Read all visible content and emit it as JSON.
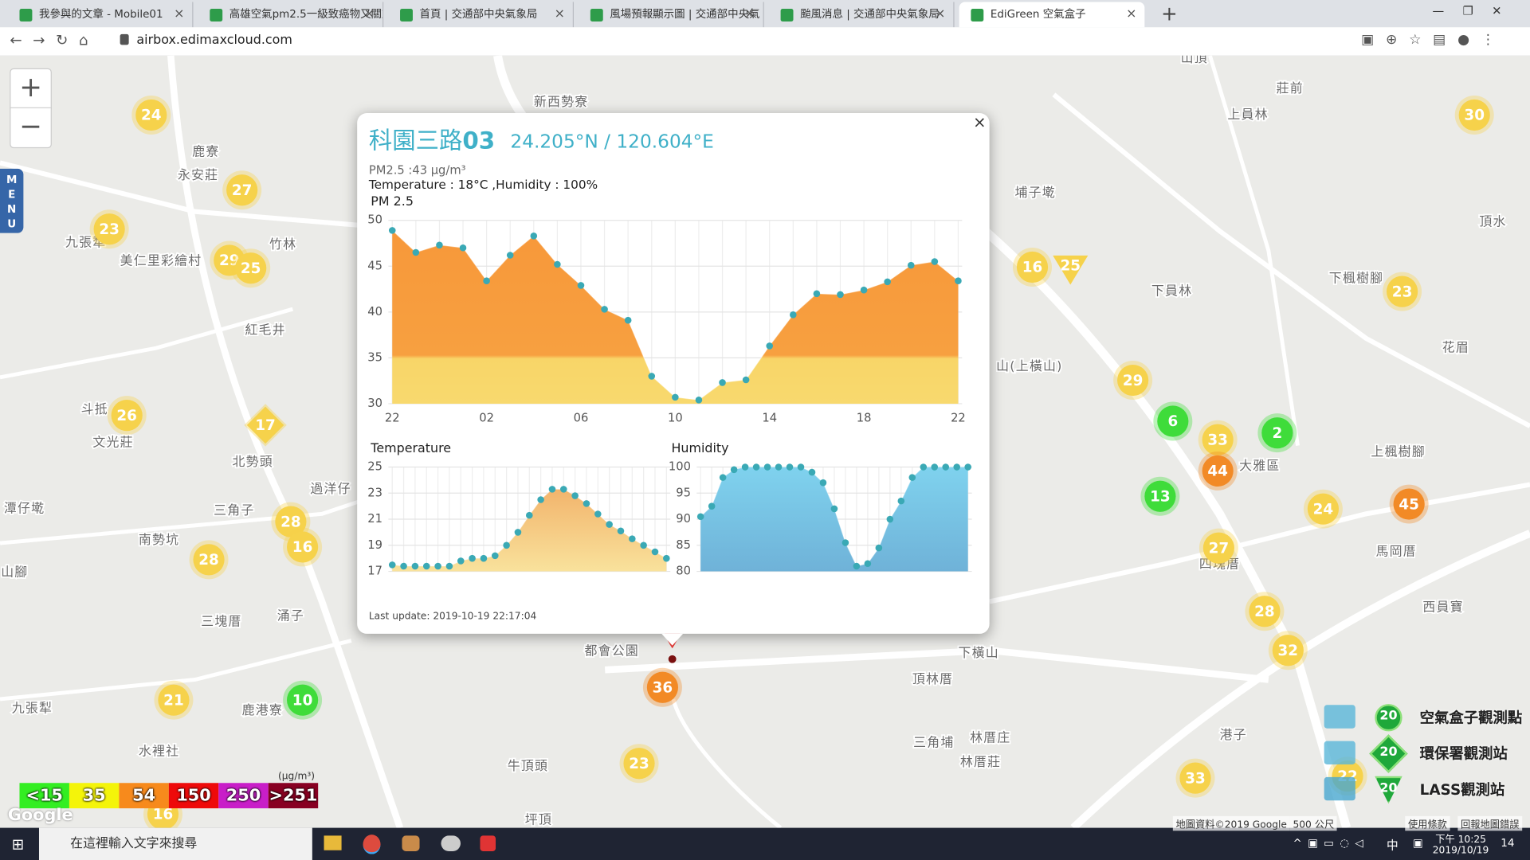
{
  "tabs": [
    "我參與的文章 - Mobile01",
    "高雄空氣pm2.5一級致癌物又關於",
    "首頁 | 交通部中央氣象局",
    "風場預報顯示圖 | 交通部中央氣",
    "颱風消息 | 交通部中央氣象局",
    "EdiGreen 空氣盒子"
  ],
  "address": "airbox.edimaxcloud.com",
  "menu": [
    "M",
    "E",
    "N",
    "U"
  ],
  "zoom": [
    "+",
    "−"
  ],
  "places": [
    "新西勢寮",
    "鹿寮",
    "永安莊",
    "九張犁",
    "美仁里彩繪村",
    "竹林",
    "紅毛井",
    "斗抵",
    "文光莊",
    "北勢頭",
    "過洋仔",
    "三角子",
    "潭仔墘",
    "南勢坑",
    "山腳",
    "三塊厝",
    "涌子",
    "九張犁",
    "鹿港寮",
    "水裡社",
    "牛頂頭",
    "坪頂",
    "都會公園",
    "埔子墘",
    "山頂",
    "莊前",
    "上員林",
    "下員林",
    "下楓樹腳",
    "花眉",
    "頂水",
    "大雅區",
    "上楓樹腳",
    "四塊厝",
    "馬岡厝",
    "西員寶",
    "下橫山",
    "頂林厝",
    "三角埔",
    "林厝庄",
    "林厝莊",
    "港子",
    "山(上橫山)"
  ],
  "markers": [
    {
      "value": 24,
      "color": "#f6d24b"
    },
    {
      "value": 27,
      "color": "#f6d24b"
    },
    {
      "value": 23,
      "color": "#f6d24b"
    },
    {
      "value": 29,
      "color": "#f6d24b"
    },
    {
      "value": 25,
      "color": "#f6d24b"
    },
    {
      "value": 26,
      "color": "#f6d24b"
    },
    {
      "value": 17,
      "color": "#f6d24b",
      "shape": "diamond"
    },
    {
      "value": 28,
      "color": "#f6d24b"
    },
    {
      "value": 16,
      "color": "#f6d24b"
    },
    {
      "value": 28,
      "color": "#f6d24b"
    },
    {
      "value": 21,
      "color": "#f6d24b"
    },
    {
      "value": 10,
      "color": "#3fdc3a"
    },
    {
      "value": 16,
      "color": "#f6d24b"
    },
    {
      "value": 30,
      "color": "#f6d24b"
    },
    {
      "value": 16,
      "color": "#f6d24b"
    },
    {
      "value": 25,
      "color": "#f6d24b",
      "shape": "triangle"
    },
    {
      "value": 23,
      "color": "#f6d24b"
    },
    {
      "value": 29,
      "color": "#f6d24b"
    },
    {
      "value": 6,
      "color": "#3fdc3a"
    },
    {
      "value": 33,
      "color": "#f6d24b"
    },
    {
      "value": 2,
      "color": "#3fdc3a"
    },
    {
      "value": 44,
      "color": "#f28a26"
    },
    {
      "value": 13,
      "color": "#3fdc3a"
    },
    {
      "value": 24,
      "color": "#f6d24b"
    },
    {
      "value": 45,
      "color": "#f28a26"
    },
    {
      "value": 27,
      "color": "#f6d24b"
    },
    {
      "value": 28,
      "color": "#f6d24b"
    },
    {
      "value": 32,
      "color": "#f6d24b"
    },
    {
      "value": 33,
      "color": "#f6d24b"
    },
    {
      "value": 22,
      "color": "#f6d24b"
    },
    {
      "value": 36,
      "color": "#f28a26"
    },
    {
      "value": 23,
      "color": "#f6d24b"
    }
  ],
  "popup": {
    "name": "科園三路",
    "number": "03",
    "coords": "24.205°N / 120.604°E",
    "pm": "PM2.5 :43 μg/m³",
    "conditions": "Temperature : 18°C ,Humidity : 100%",
    "last_update": "Last update: 2019-10-19 22:17:04",
    "close": "×"
  },
  "chart_data": [
    {
      "type": "area",
      "title": "PM 2.5",
      "categories": [
        "22",
        null,
        null,
        null,
        "02",
        null,
        null,
        null,
        "06",
        null,
        null,
        null,
        "10",
        null,
        null,
        null,
        "14",
        null,
        null,
        null,
        "18",
        null,
        null,
        null,
        "22"
      ],
      "values": [
        48.9,
        46.5,
        47.3,
        47.0,
        43.4,
        46.2,
        48.3,
        45.2,
        42.9,
        40.3,
        39.1,
        33.0,
        30.7,
        30.4,
        32.3,
        32.6,
        36.3,
        39.7,
        42.0,
        41.9,
        42.4,
        43.3,
        45.1,
        45.5,
        43.4
      ],
      "ylim": [
        30,
        50
      ],
      "yticks": [
        30,
        35,
        40,
        45,
        50
      ],
      "grid": true,
      "color": "#3aa9b5"
    },
    {
      "type": "area",
      "title": "Temperature",
      "values": [
        17.5,
        17.4,
        17.4,
        17.4,
        17.4,
        17.4,
        17.8,
        18.0,
        18.0,
        18.2,
        19.0,
        20.0,
        21.3,
        22.5,
        23.3,
        23.3,
        22.8,
        22.2,
        21.4,
        20.6,
        20.1,
        19.5,
        19.0,
        18.5,
        18.0
      ],
      "ylim": [
        17,
        25
      ],
      "yticks": [
        17,
        19,
        21,
        23,
        25
      ],
      "grid": true,
      "color": "#3aa9b5"
    },
    {
      "type": "area",
      "title": "Humidity",
      "values": [
        90.5,
        92.5,
        98,
        99.5,
        100,
        100,
        100,
        100,
        100,
        100,
        99,
        97,
        92,
        85.5,
        81,
        81.5,
        84.5,
        90,
        93.5,
        98,
        100,
        100,
        100,
        100,
        100
      ],
      "ylim": [
        80,
        100
      ],
      "yticks": [
        80,
        85,
        90,
        95,
        100
      ],
      "grid": true,
      "color": "#3aa9b5"
    }
  ],
  "legend": {
    "unit": "(μg/m³)",
    "items": [
      {
        "label": "<15",
        "color": "#33ee22"
      },
      {
        "label": "35",
        "color": "#f4f40a"
      },
      {
        "label": "54",
        "color": "#f78a1c"
      },
      {
        "label": "150",
        "color": "#ee0a0a"
      },
      {
        "label": "250",
        "color": "#c81ec8"
      },
      {
        "label": ">251",
        "color": "#880022"
      }
    ]
  },
  "stations": [
    {
      "count": 20,
      "label": "空氣盒子觀測點"
    },
    {
      "count": 20,
      "label": "環保署觀測站"
    },
    {
      "count": 20,
      "label": "LASS觀測站"
    }
  ],
  "google": "Google",
  "footer": [
    "地圖資料©2019 Google",
    "500 公尺",
    "使用條款",
    "回報地圖錯誤"
  ],
  "taskbar": {
    "search": "在這裡輸入文字來搜尋",
    "ime": "中",
    "time": "下午 10:25",
    "date": "2019/10/19",
    "notifications": "14"
  }
}
